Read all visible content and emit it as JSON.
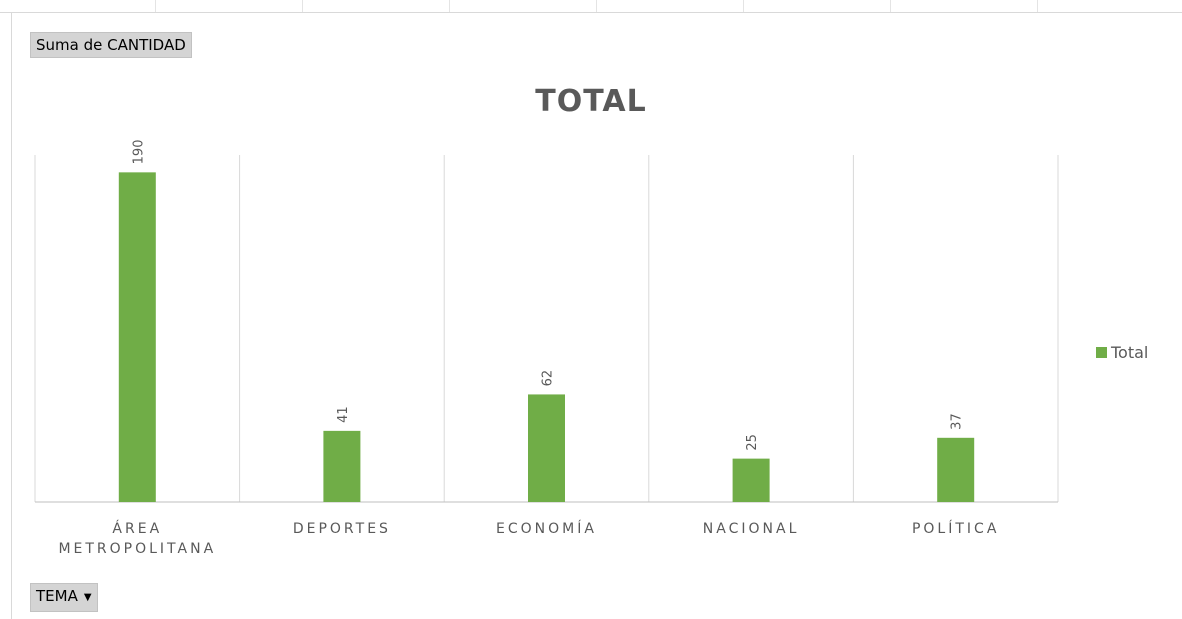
{
  "pivot": {
    "value_field": "Suma de CANTIDAD",
    "axis_field": "TEMA",
    "axis_dropdown_icon": "dropdown-arrow-icon"
  },
  "chart_data": {
    "type": "bar",
    "title": "TOTAL",
    "categories": [
      "ÁREA\nMETROPOLITANA",
      "DEPORTES",
      "ECONOMÍA",
      "NACIONAL",
      "POLÍTICA"
    ],
    "series": [
      {
        "name": "Total",
        "values": [
          190,
          41,
          62,
          25,
          37
        ],
        "color": "#70ad47"
      }
    ],
    "ylim": [
      0,
      200
    ],
    "grid": "vertical-category-separators",
    "data_labels": true,
    "legend_position": "right"
  }
}
